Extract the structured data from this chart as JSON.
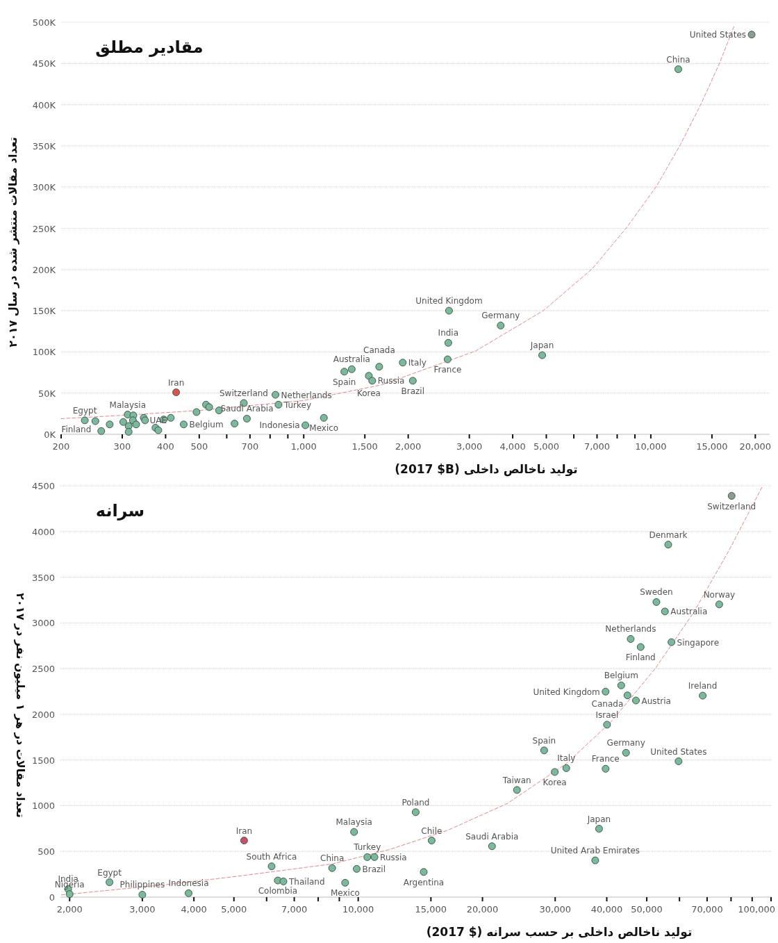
{
  "chart_data": [
    {
      "type": "scatter",
      "title": "مقادیر مطلق",
      "xlabel": "تولید ناخالص داخلی (2017 $B)",
      "ylabel": "تعداد مقالات منتشر شده در سال ۲۰۱۷",
      "log": "x",
      "grid": "y",
      "xlim": [
        200,
        22000
      ],
      "ylim": [
        0,
        500000
      ],
      "xticks": [
        200,
        300,
        400,
        500,
        {
          "value": 600,
          "label": null
        },
        700,
        {
          "value": 800,
          "label": null
        },
        {
          "value": 900,
          "label": null
        },
        {
          "value": 1000,
          "label": "1,000"
        },
        {
          "value": 1500,
          "label": "1,500"
        },
        {
          "value": 2000,
          "label": "2,000"
        },
        {
          "value": 3000,
          "label": "3,000"
        },
        {
          "value": 4000,
          "label": "4,000"
        },
        {
          "value": 5000,
          "label": "5,000"
        },
        {
          "value": 6000,
          "label": null
        },
        {
          "value": 7000,
          "label": "7,000"
        },
        {
          "value": 8000,
          "label": null
        },
        {
          "value": 9000,
          "label": null
        },
        {
          "value": 10000,
          "label": "10,000"
        },
        {
          "value": 15000,
          "label": "15,000"
        },
        {
          "value": 20000,
          "label": "20,000"
        }
      ],
      "yticks": [
        {
          "value": 0,
          "label": "0K"
        },
        {
          "value": 50000,
          "label": "50K"
        },
        {
          "value": 100000,
          "label": "100K"
        },
        {
          "value": 150000,
          "label": "150K"
        },
        {
          "value": 200000,
          "label": "200K"
        },
        {
          "value": 250000,
          "label": "250K"
        },
        {
          "value": 300000,
          "label": "300K"
        },
        {
          "value": 350000,
          "label": "350K"
        },
        {
          "value": 400000,
          "label": "400K"
        },
        {
          "value": 450000,
          "label": "450K"
        },
        {
          "value": 500000,
          "label": "500K"
        }
      ],
      "series": [
        {
          "type": "line",
          "color": "#e08a8a",
          "line_style": "dashed",
          "x": [
            200,
            300,
            500,
            1000,
            1677,
            3124,
            4899,
            6786,
            8526,
            10384,
            12187,
            13996,
            15804,
            17400
          ],
          "values": [
            19000,
            23000,
            29000,
            41000,
            60000,
            101000,
            150000,
            201000,
            251000,
            301000,
            352000,
            402000,
            451000,
            496000
          ]
        },
        {
          "marker": "circle",
          "x": [
            234,
            251,
            261,
            276,
            302,
            311,
            313,
            313,
            323,
            322,
            329,
            346,
            349,
            374,
            381,
            395,
            414,
            429,
            451,
            491,
            523,
            534,
            570,
            632,
            672,
            686,
            829,
            846,
            1011,
            1143,
            1309,
            1375,
            1540,
            1575,
            1650,
            1929,
            2062,
            2598,
            2609,
            2622,
            3694,
            4864,
            12000,
            19520
          ],
          "values": [
            17000,
            16000,
            4000,
            12000,
            15000,
            24000,
            10000,
            3000,
            23000,
            17000,
            12000,
            20000,
            17000,
            8000,
            5000,
            18000,
            20000,
            51000,
            12000,
            27000,
            36000,
            33000,
            29000,
            13000,
            38000,
            19000,
            48000,
            36000,
            11000,
            20000,
            76000,
            79000,
            71000,
            65000,
            82000,
            87000,
            65000,
            91000,
            111000,
            150000,
            132000,
            96000,
            443000,
            485000
          ],
          "colors": [
            "#7db79d",
            "#7db79d",
            "#7db79d",
            "#7db79d",
            "#7db79d",
            "#7db79d",
            "#7db79d",
            "#7db79d",
            "#7db79d",
            "#7db79d",
            "#7db79d",
            "#7db79d",
            "#7db79d",
            "#7db79d",
            "#7db79d",
            "#7db79d",
            "#7db79d",
            "#d9534f",
            "#7db79d",
            "#7db79d",
            "#7db79d",
            "#7db79d",
            "#7db79d",
            "#7db79d",
            "#7db79d",
            "#7db79d",
            "#7db79d",
            "#7db79d",
            "#7db79d",
            "#7db79d",
            "#7db79d",
            "#7db79d",
            "#7db79d",
            "#7db79d",
            "#7db79d",
            "#7db79d",
            "#7db79d",
            "#7db79d",
            "#7db79d",
            "#7db79d",
            "#7db79d",
            "#7db79d",
            "#7db79d",
            "#8f9a93"
          ]
        }
      ],
      "annotations": [
        {
          "text": "Egypt",
          "x": 234,
          "y": 17000
        },
        {
          "text": "Finland",
          "x": 251,
          "y": 16000
        },
        {
          "text": "Malaysia",
          "x": 311,
          "y": 24000
        },
        {
          "text": "UAE",
          "x": 381,
          "y": 5000
        },
        {
          "text": "Iran",
          "x": 429,
          "y": 51000
        },
        {
          "text": "Belgium",
          "x": 451,
          "y": 12000
        },
        {
          "text": "Switzerland",
          "x": 672,
          "y": 38000
        },
        {
          "text": "Saudi Arabia",
          "x": 686,
          "y": 19000
        },
        {
          "text": "Netherlands",
          "x": 829,
          "y": 48000
        },
        {
          "text": "Turkey",
          "x": 846,
          "y": 36000
        },
        {
          "text": "Indonesia",
          "x": 1011,
          "y": 11000
        },
        {
          "text": "Mexico",
          "x": 1143,
          "y": 20000
        },
        {
          "text": "Spain",
          "x": 1309,
          "y": 76000
        },
        {
          "text": "Australia",
          "x": 1375,
          "y": 79000
        },
        {
          "text": "Korea",
          "x": 1540,
          "y": 71000
        },
        {
          "text": "Russia",
          "x": 1575,
          "y": 65000
        },
        {
          "text": "Canada",
          "x": 1650,
          "y": 82000
        },
        {
          "text": "Italy",
          "x": 1929,
          "y": 87000
        },
        {
          "text": "Brazil",
          "x": 2062,
          "y": 65000
        },
        {
          "text": "France",
          "x": 2598,
          "y": 91000
        },
        {
          "text": "India",
          "x": 2609,
          "y": 111000
        },
        {
          "text": "United Kingdom",
          "x": 2622,
          "y": 150000
        },
        {
          "text": "Germany",
          "x": 3694,
          "y": 132000
        },
        {
          "text": "Japan",
          "x": 4864,
          "y": 96000
        },
        {
          "text": "China",
          "x": 12000,
          "y": 443000
        },
        {
          "text": "United States",
          "x": 19520,
          "y": 485000
        }
      ]
    },
    {
      "type": "scatter",
      "title": "سرانه",
      "xlabel": "تولید ناخالص داخلی بر حسب سرانه   (2017 $)",
      "ylabel": "تعداد مقالات در هر ۱ میلیون نفر در ۲۰۱۷",
      "log": "x",
      "grid": "y",
      "xlim": [
        1900,
        100000
      ],
      "ylim": [
        0,
        4500
      ],
      "xticks": [
        {
          "value": 2000,
          "label": "2,000"
        },
        {
          "value": 3000,
          "label": "3,000"
        },
        {
          "value": 4000,
          "label": "4,000"
        },
        {
          "value": 5000,
          "label": "5,000"
        },
        {
          "value": 6000,
          "label": null
        },
        {
          "value": 7000,
          "label": "7,000"
        },
        {
          "value": 8000,
          "label": null
        },
        {
          "value": 9000,
          "label": null
        },
        {
          "value": 10000,
          "label": "10,000"
        },
        {
          "value": 15000,
          "label": "15,000"
        },
        {
          "value": 20000,
          "label": "20,000"
        },
        {
          "value": 30000,
          "label": "30,000"
        },
        {
          "value": 40000,
          "label": "40,000"
        },
        {
          "value": 50000,
          "label": "50,000"
        },
        {
          "value": 60000,
          "label": null
        },
        {
          "value": 70000,
          "label": "70,000"
        },
        {
          "value": 80000,
          "label": null
        },
        {
          "value": 90000,
          "label": null
        },
        {
          "value": 100000,
          "label": "100,000"
        }
      ],
      "yticks": [
        0,
        500,
        1000,
        1500,
        2000,
        2500,
        3000,
        3500,
        4000,
        4500
      ],
      "series": [
        {
          "type": "line",
          "color": "#e08a8a",
          "line_style": "dashed",
          "x": [
            1910,
            3428,
            5088,
            8648,
            11900,
            16550,
            23000,
            31980,
            40920,
            52380,
            64900,
            79100,
            95100
          ],
          "values": [
            24,
            137,
            228,
            363,
            520,
            735,
            1026,
            1463,
            1915,
            2498,
            3112,
            3792,
            4486
          ]
        },
        {
          "marker": "circle",
          "x": [
            1984,
            2000,
            2498,
            3000,
            3883,
            5292,
            6170,
            6386,
            6590,
            8648,
            9298,
            9772,
            9916,
            10520,
            10950,
            13780,
            14410,
            15060,
            21090,
            24240,
            28210,
            29930,
            31920,
            37510,
            38320,
            39740,
            39740,
            40060,
            43360,
            44530,
            44890,
            45710,
            47070,
            48330,
            52760,
            55330,
            56360,
            57370,
            59700,
            68300,
            74900,
            80260
          ],
          "values": [
            88,
            33,
            163,
            27,
            43,
            619,
            337,
            182,
            172,
            318,
            157,
            713,
            309,
            438,
            438,
            929,
            275,
            619,
            557,
            1172,
            1605,
            1369,
            1411,
            402,
            748,
            1404,
            2248,
            1886,
            2316,
            1579,
            2207,
            2824,
            2151,
            2736,
            3228,
            3125,
            3856,
            2789,
            1486,
            2204,
            3202,
            4389
          ],
          "colors": [
            "#7db79d",
            "#7db79d",
            "#7db79d",
            "#7db79d",
            "#7db79d",
            "#c8506a",
            "#7db79d",
            "#7db79d",
            "#7db79d",
            "#7db79d",
            "#7db79d",
            "#7db79d",
            "#7db79d",
            "#7db79d",
            "#7db79d",
            "#7db79d",
            "#7db79d",
            "#7db79d",
            "#7db79d",
            "#7db79d",
            "#7db79d",
            "#7db79d",
            "#7db79d",
            "#7db79d",
            "#7db79d",
            "#7db79d",
            "#7db79d",
            "#7db79d",
            "#7db79d",
            "#7db79d",
            "#7db79d",
            "#7db79d",
            "#7db79d",
            "#7db79d",
            "#7db79d",
            "#7db79d",
            "#7db79d",
            "#7db79d",
            "#7db79d",
            "#7db79d",
            "#7db79d",
            "#8f9a93"
          ]
        }
      ],
      "annotations": [
        {
          "text": "India",
          "x": 1984,
          "y": 88
        },
        {
          "text": "Nigeria",
          "x": 2000,
          "y": 33
        },
        {
          "text": "Egypt",
          "x": 2498,
          "y": 163
        },
        {
          "text": "Philippines",
          "x": 3000,
          "y": 27
        },
        {
          "text": "Indonesia",
          "x": 3883,
          "y": 43
        },
        {
          "text": "Iran",
          "x": 5292,
          "y": 619
        },
        {
          "text": "South Africa",
          "x": 6170,
          "y": 337
        },
        {
          "text": "Colombia",
          "x": 6386,
          "y": 182
        },
        {
          "text": "Thailand",
          "x": 6590,
          "y": 172
        },
        {
          "text": "China",
          "x": 8648,
          "y": 318
        },
        {
          "text": "Mexico",
          "x": 9298,
          "y": 157
        },
        {
          "text": "Malaysia",
          "x": 9772,
          "y": 713
        },
        {
          "text": "Brazil",
          "x": 9916,
          "y": 309
        },
        {
          "text": "Turkey",
          "x": 10520,
          "y": 438
        },
        {
          "text": "Russia",
          "x": 10950,
          "y": 438
        },
        {
          "text": "Poland",
          "x": 13780,
          "y": 929
        },
        {
          "text": "Argentina",
          "x": 14410,
          "y": 275
        },
        {
          "text": "Chile",
          "x": 15060,
          "y": 619
        },
        {
          "text": "Saudi Arabia",
          "x": 21090,
          "y": 557
        },
        {
          "text": "Taiwan",
          "x": 24240,
          "y": 1172
        },
        {
          "text": "Spain",
          "x": 28210,
          "y": 1605
        },
        {
          "text": "Korea",
          "x": 29930,
          "y": 1369
        },
        {
          "text": "Italy",
          "x": 31920,
          "y": 1411
        },
        {
          "text": "United Arab Emirates",
          "x": 37510,
          "y": 402
        },
        {
          "text": "Japan",
          "x": 38320,
          "y": 748
        },
        {
          "text": "France",
          "x": 39740,
          "y": 1404
        },
        {
          "text": "United Kingdom",
          "x": 39740,
          "y": 2248
        },
        {
          "text": "Israel",
          "x": 40060,
          "y": 1886
        },
        {
          "text": "Belgium",
          "x": 43360,
          "y": 2316
        },
        {
          "text": "Germany",
          "x": 44530,
          "y": 1579
        },
        {
          "text": "Canada",
          "x": 44890,
          "y": 2207
        },
        {
          "text": "Netherlands",
          "x": 45710,
          "y": 2824
        },
        {
          "text": "Austria",
          "x": 47070,
          "y": 2151
        },
        {
          "text": "Finland",
          "x": 48330,
          "y": 2736
        },
        {
          "text": "Sweden",
          "x": 52760,
          "y": 3228
        },
        {
          "text": "Australia",
          "x": 55330,
          "y": 3125
        },
        {
          "text": "Denmark",
          "x": 56360,
          "y": 3856
        },
        {
          "text": "Singapore",
          "x": 57370,
          "y": 2789
        },
        {
          "text": "United States",
          "x": 59700,
          "y": 1486
        },
        {
          "text": "Ireland",
          "x": 68300,
          "y": 2204
        },
        {
          "text": "Norway",
          "x": 74900,
          "y": 3202
        },
        {
          "text": "Switzerland",
          "x": 80260,
          "y": 4389
        }
      ]
    }
  ]
}
